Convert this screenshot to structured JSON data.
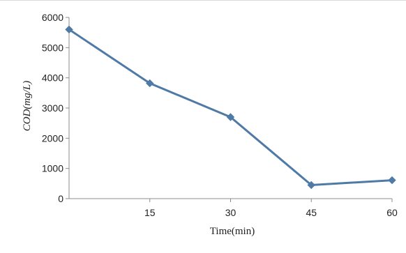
{
  "chart_data": {
    "type": "line",
    "title": "",
    "xlabel": "Time(min)",
    "ylabel": "COD(mg/L)",
    "x_ticks": [
      "15",
      "30",
      "45",
      "60"
    ],
    "y_ticks": [
      "0",
      "1000",
      "2000",
      "3000",
      "4000",
      "5000",
      "6000"
    ],
    "xlim": [
      0,
      60
    ],
    "ylim": [
      0,
      6000
    ],
    "grid": false,
    "series": [
      {
        "x": [
          0,
          15,
          30,
          45,
          60
        ],
        "values": [
          5600,
          3820,
          2700,
          450,
          610
        ]
      }
    ],
    "colors": {
      "line": "#4f7aa6",
      "marker": "#4f7aa6",
      "axis": "#8c8c8c"
    }
  }
}
